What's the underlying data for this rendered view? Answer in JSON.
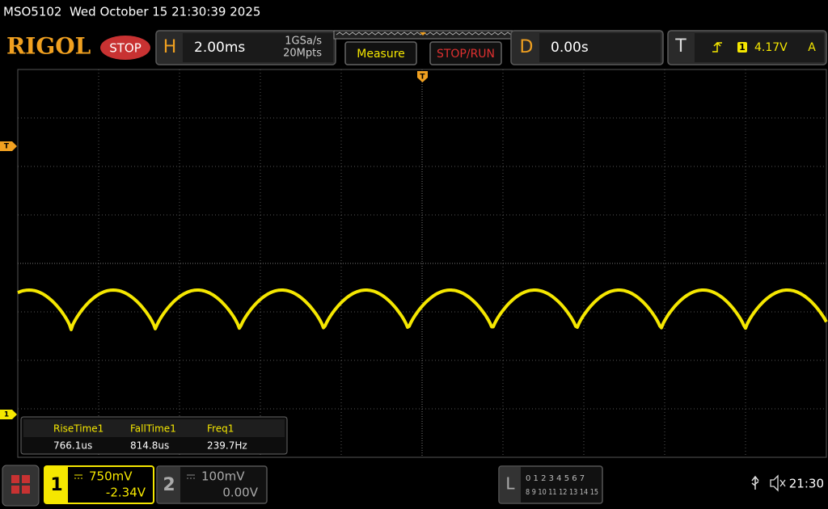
{
  "status_bar": {
    "text": "MSO5102  Wed October 15 21:30:39 2025"
  },
  "header": {
    "brand": "RIGOL",
    "run_state": "STOP",
    "horizontal": {
      "label": "H",
      "timebase": "2.00ms",
      "sample_rate": "1GSa/s",
      "memory_depth": "20Mpts"
    },
    "buttons": [
      "Measure",
      "STOP/RUN"
    ],
    "delay": {
      "label": "D",
      "value": "0.00s"
    },
    "trigger": {
      "label": "T",
      "source": "1",
      "level": "4.17V",
      "mode": "A"
    }
  },
  "markers": {
    "trigger_level": "T",
    "channel1": "1",
    "trigger_position": "T"
  },
  "measurements": [
    {
      "name": "RiseTime1",
      "value": "766.1us"
    },
    {
      "name": "FallTime1",
      "value": "814.8us"
    },
    {
      "name": "Freq1",
      "value": "239.7Hz"
    }
  ],
  "channels": [
    {
      "number": "1",
      "scale": "750mV",
      "offset": "-2.34V"
    },
    {
      "number": "2",
      "scale": "100mV",
      "offset": "0.00V"
    }
  ],
  "logic": {
    "label": "L",
    "row1": "0 1 2 3 4 5 6 7",
    "row2": "8 9 10 11 12 13 14 15"
  },
  "clock": "21:30"
}
